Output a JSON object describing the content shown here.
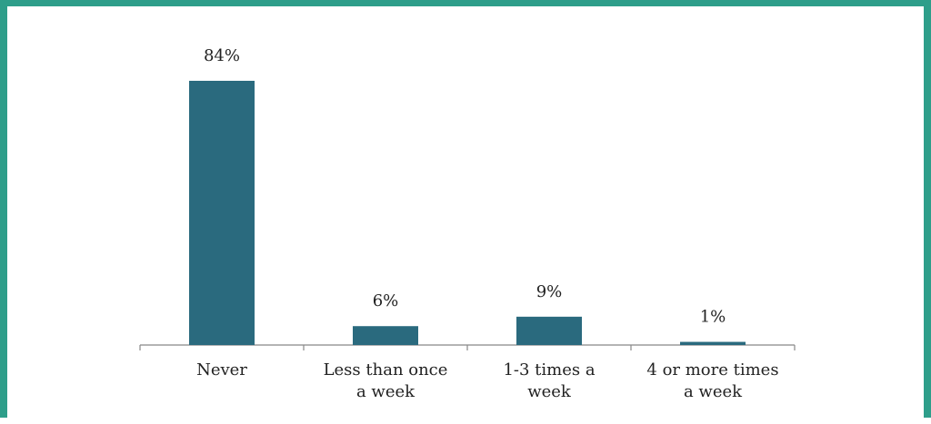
{
  "colors": {
    "frame": "#2e9e8a",
    "bar": "#2a6a7e",
    "axis": "#888888",
    "text": "#222222"
  },
  "chart_data": {
    "type": "bar",
    "categories": [
      [
        "Never"
      ],
      [
        "Less than once",
        "a week"
      ],
      [
        "1-3 times a",
        "week"
      ],
      [
        "4 or more times",
        "a week"
      ]
    ],
    "values": [
      84,
      6,
      9,
      1
    ],
    "data_labels": [
      "84%",
      "6%",
      "9%",
      "1%"
    ],
    "ylim": [
      0,
      100
    ],
    "grid": false,
    "legend": "none"
  }
}
